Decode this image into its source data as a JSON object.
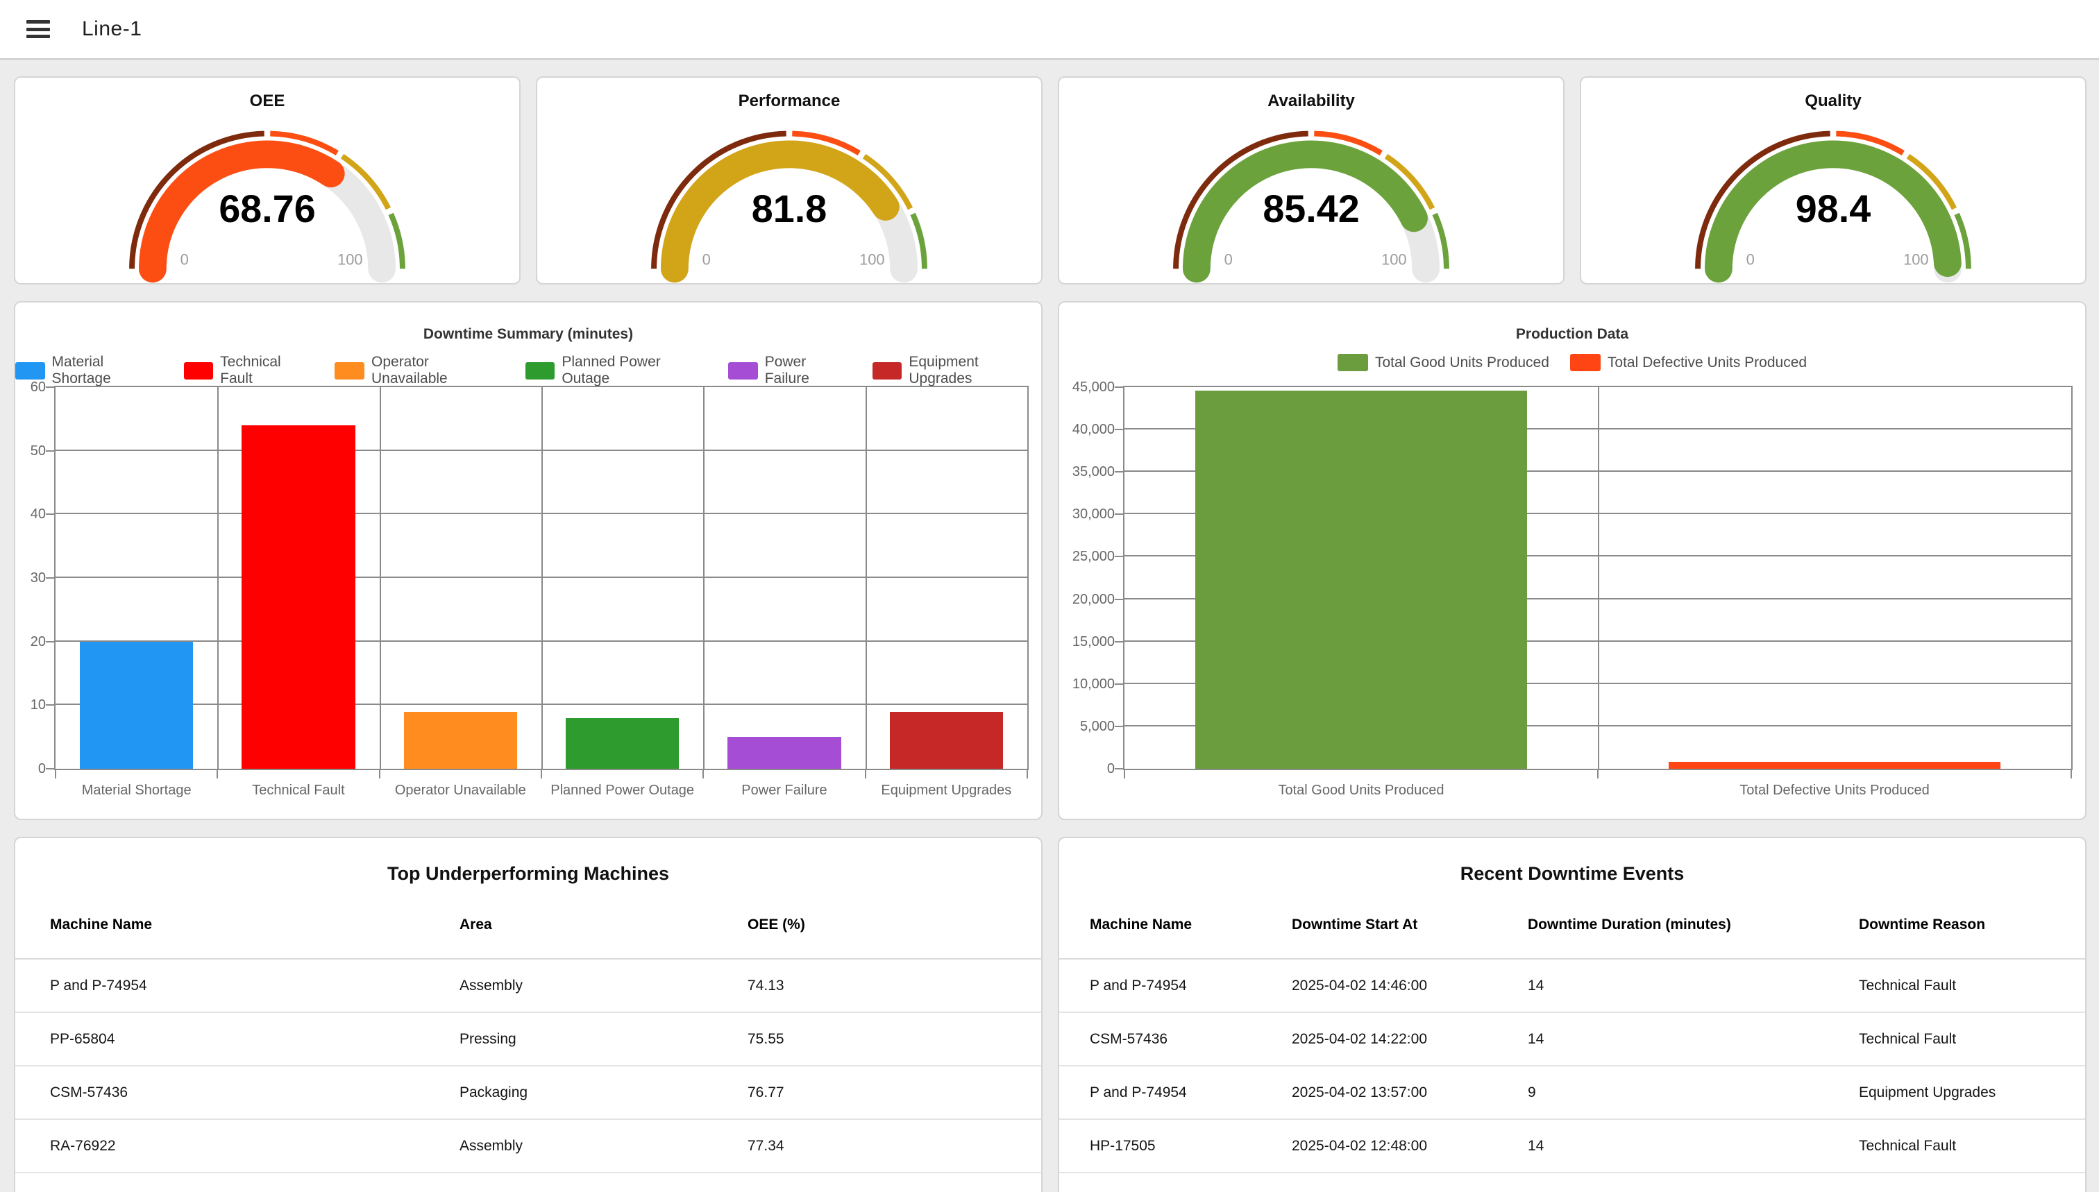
{
  "topbar": {
    "title": "Line-1"
  },
  "gauge_scale": {
    "min_label": "0",
    "max_label": "100",
    "track_color": "#e8e8e8",
    "segments": [
      {
        "to": 50,
        "color": "#7d2a0d"
      },
      {
        "to": 68,
        "color": "#fc4e12"
      },
      {
        "to": 86,
        "color": "#d2a417"
      },
      {
        "to": 100,
        "color": "#6ca23c"
      }
    ]
  },
  "gauges": [
    {
      "title": "OEE",
      "value": 68.76,
      "display": "68.76",
      "color": "#fc4e12"
    },
    {
      "title": "Performance",
      "value": 81.8,
      "display": "81.8",
      "color": "#d2a417"
    },
    {
      "title": "Availability",
      "value": 85.42,
      "display": "85.42",
      "color": "#6ca23c"
    },
    {
      "title": "Quality",
      "value": 98.4,
      "display": "98.4",
      "color": "#6ca23c"
    }
  ],
  "chart_data": [
    {
      "type": "bar",
      "title": "Downtime Summary (minutes)",
      "categories": [
        "Material Shortage",
        "Technical Fault",
        "Operator Unavailable",
        "Planned Power Outage",
        "Power Failure",
        "Equipment Upgrades"
      ],
      "values": [
        20,
        54,
        9,
        8,
        5,
        9
      ],
      "colors": [
        "#2196f3",
        "#fe0000",
        "#ff8c1e",
        "#2e9b2e",
        "#a64dd6",
        "#c62828"
      ],
      "legend": [
        {
          "label": "Material Shortage",
          "color": "#2196f3"
        },
        {
          "label": "Technical Fault",
          "color": "#fe0000"
        },
        {
          "label": "Operator Unavailable",
          "color": "#ff8c1e"
        },
        {
          "label": "Planned Power Outage",
          "color": "#2e9b2e"
        },
        {
          "label": "Power Failure",
          "color": "#a64dd6"
        },
        {
          "label": "Equipment Upgrades",
          "color": "#c62828"
        }
      ],
      "xlabel": "",
      "ylabel": "",
      "ylim": [
        0,
        60
      ],
      "ystep": 10,
      "grid": true,
      "legend_position": "top",
      "ylabels": [
        "0",
        "10",
        "20",
        "30",
        "40",
        "50",
        "60"
      ]
    },
    {
      "type": "bar",
      "title": "Production Data",
      "categories": [
        "Total Good Units Produced",
        "Total Defective Units Produced"
      ],
      "values": [
        44600,
        800
      ],
      "colors": [
        "#6b9c3d",
        "#ff4514"
      ],
      "legend": [
        {
          "label": "Total Good Units Produced",
          "color": "#6b9c3d"
        },
        {
          "label": "Total Defective Units Produced",
          "color": "#ff4514"
        }
      ],
      "xlabel": "",
      "ylabel": "",
      "ylim": [
        0,
        45000
      ],
      "ystep": 5000,
      "grid": true,
      "legend_position": "top",
      "ylabels": [
        "0",
        "5,000",
        "10,000",
        "15,000",
        "20,000",
        "25,000",
        "30,000",
        "35,000",
        "40,000",
        "45,000"
      ]
    }
  ],
  "tables": [
    {
      "title": "Top Underperforming Machines",
      "columns": [
        "Machine Name",
        "Area",
        "OEE (%)"
      ],
      "rows": [
        [
          "P and P-74954",
          "Assembly",
          "74.13"
        ],
        [
          "PP-65804",
          "Pressing",
          "75.55"
        ],
        [
          "CSM-57436",
          "Packaging",
          "76.77"
        ],
        [
          "RA-76922",
          "Assembly",
          "77.34"
        ]
      ]
    },
    {
      "title": "Recent Downtime Events",
      "columns": [
        "Machine Name",
        "Downtime Start At",
        "Downtime Duration (minutes)",
        "Downtime Reason"
      ],
      "rows": [
        [
          "P and P-74954",
          "2025-04-02 14:46:00",
          "14",
          "Technical Fault"
        ],
        [
          "CSM-57436",
          "2025-04-02 14:22:00",
          "14",
          "Technical Fault"
        ],
        [
          "P and P-74954",
          "2025-04-02 13:57:00",
          "9",
          "Equipment Upgrades"
        ],
        [
          "HP-17505",
          "2025-04-02 12:48:00",
          "14",
          "Technical Fault"
        ]
      ]
    }
  ]
}
